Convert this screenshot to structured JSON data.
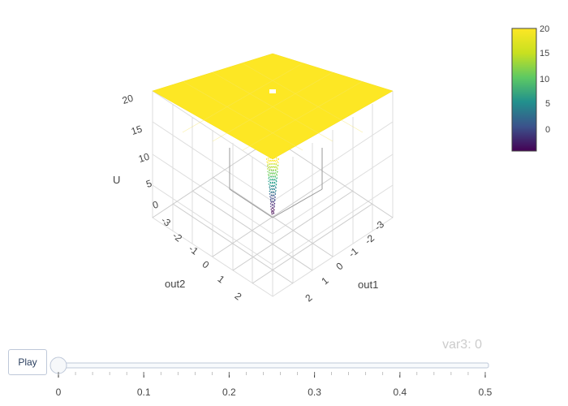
{
  "chart_data": {
    "type": "surface",
    "axes": {
      "x": {
        "label": "out1",
        "ticks": [
          "-3",
          "-2",
          "-1",
          "0",
          "1",
          "2"
        ]
      },
      "y": {
        "label": "out2",
        "ticks": [
          "-3",
          "-2",
          "-1",
          "0",
          "1",
          "2"
        ]
      },
      "z": {
        "label": "U",
        "ticks": [
          "0",
          "5",
          "10",
          "15",
          "20"
        ],
        "range": [
          0,
          20
        ]
      }
    },
    "surface": {
      "plateau_value": 20,
      "description_values": {
        "flat_top": 20,
        "well_min": -5
      }
    },
    "colorbar": {
      "ticks": [
        "20",
        "15",
        "10",
        "5",
        "0"
      ],
      "range": [
        -5,
        20
      ],
      "colorscale": "Viridis"
    }
  },
  "slider": {
    "current_label": "var3: 0",
    "ticks": [
      "0",
      "0.1",
      "0.2",
      "0.3",
      "0.4",
      "0.5"
    ],
    "value": 0
  },
  "controls": {
    "play_label": "Play"
  },
  "colors": {
    "surface": "#fde724",
    "grid": "#d9d9d9",
    "axis_text": "#444444"
  }
}
